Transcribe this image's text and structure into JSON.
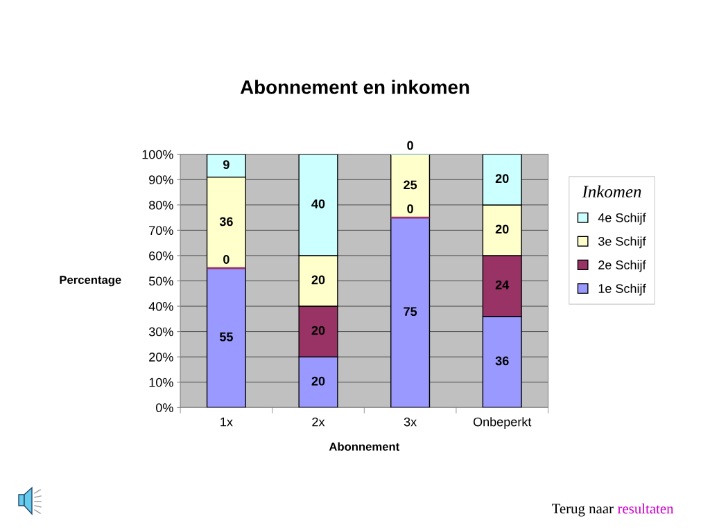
{
  "chart_data": {
    "type": "bar",
    "title": "Abonnement en inkomen",
    "xlabel": "Abonnement",
    "ylabel": "Percentage",
    "legend_title": "Inkomen",
    "categories": [
      "1x",
      "2x",
      "3x",
      "Onbeperkt"
    ],
    "series": [
      {
        "name": "1e Schijf",
        "color": "#9999ff",
        "values": [
          55,
          20,
          75,
          36
        ]
      },
      {
        "name": "2e Schijf",
        "color": "#993366",
        "values": [
          0,
          20,
          0,
          24
        ]
      },
      {
        "name": "3e Schijf",
        "color": "#ffffcc",
        "values": [
          36,
          20,
          25,
          20
        ]
      },
      {
        "name": "4e Schijf",
        "color": "#ccffff",
        "values": [
          9,
          40,
          0,
          20
        ]
      }
    ],
    "stacked": true,
    "ylim": [
      0,
      100
    ],
    "yticks": [
      {
        "value": 0,
        "label": "0%"
      },
      {
        "value": 10,
        "label": "10%"
      },
      {
        "value": 20,
        "label": "20%"
      },
      {
        "value": 30,
        "label": "30%"
      },
      {
        "value": 40,
        "label": "40%"
      },
      {
        "value": 50,
        "label": "50%"
      },
      {
        "value": 60,
        "label": "60%"
      },
      {
        "value": 70,
        "label": "70%"
      },
      {
        "value": 80,
        "label": "80%"
      },
      {
        "value": 90,
        "label": "90%"
      },
      {
        "value": 100,
        "label": "100%"
      }
    ],
    "grid": "y",
    "legend": "right",
    "data_labels": true,
    "annotations": [
      "Terug naar",
      "resultaten"
    ]
  }
}
